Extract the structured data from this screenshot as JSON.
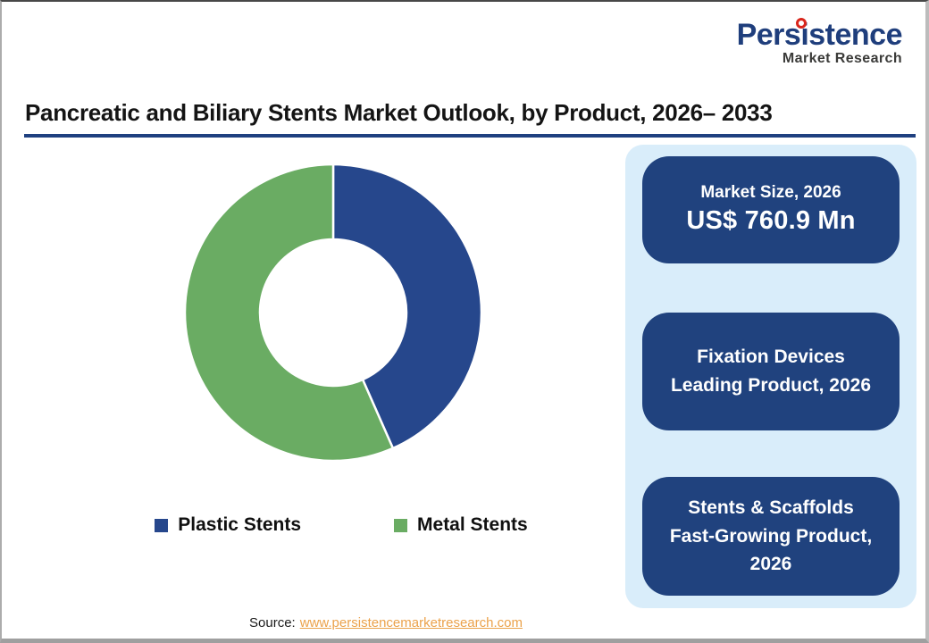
{
  "brand": {
    "name": "Persistence",
    "tagline": "Market Research",
    "name_color": "#1F3E7C",
    "dot_color": "#D9261C"
  },
  "title": "Pancreatic and Biliary Stents Market Outlook, by Product, 2026– 2033",
  "colors": {
    "accent_navy": "#1F4080",
    "panel_background": "#D9EDFA",
    "box_navy": "#20427E"
  },
  "chart_data": {
    "type": "pie",
    "subtype": "donut",
    "title": "Pancreatic and Biliary Stents Market Outlook, by Product, 2026– 2033",
    "categories": [
      "Plastic Stents",
      "Metal Stents"
    ],
    "values": [
      43.4,
      56.6
    ],
    "values_note": "percent share estimated from arc angles; no data labels shown in image",
    "colors": [
      "#26478C",
      "#6AAC63"
    ],
    "start_angle_deg": 0,
    "direction": "clockwise",
    "outer_radius_px": 166,
    "inner_radius_px": 82,
    "separator_color": "#ffffff",
    "legend_position": "bottom"
  },
  "panel": {
    "background": "#D9EDFA",
    "box_color": "#20427E",
    "boxes": [
      {
        "name": "market-size",
        "lines": [
          "Market Size, 2026",
          "US$ 760.9 Mn"
        ]
      },
      {
        "name": "leading-product",
        "lines": [
          "Fixation Devices",
          "Leading Product, 2026"
        ]
      },
      {
        "name": "fast-growing-product",
        "lines": [
          "Stents & Scaffolds",
          "Fast-Growing Product,",
          "2026"
        ]
      }
    ]
  },
  "source": {
    "label": "Source:",
    "link": "www.persistencemarketresearch.com",
    "link_color": "#EBA24B"
  }
}
